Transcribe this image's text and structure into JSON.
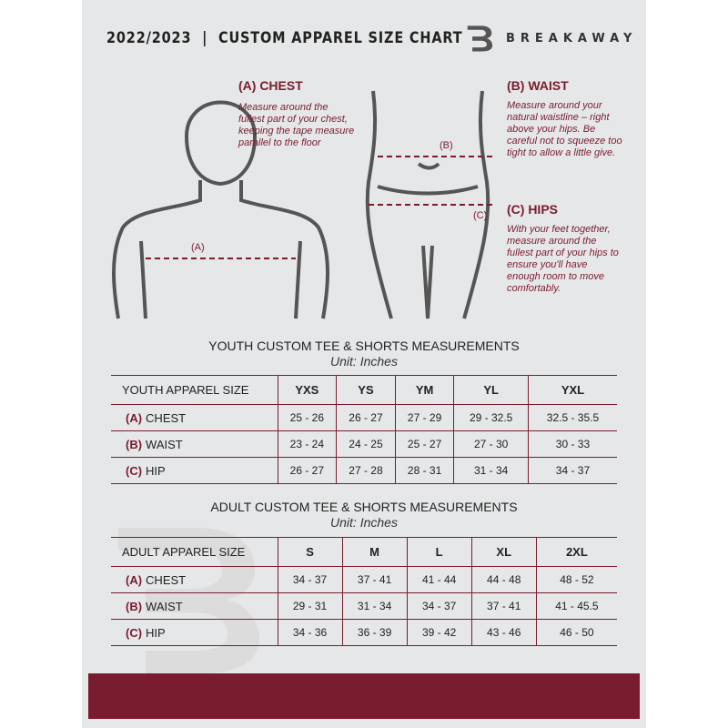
{
  "header": {
    "title": "2022/2023  |  CUSTOM APPAREL SIZE CHART",
    "brand": "BREAKAWAY",
    "logo_letter": "B"
  },
  "measures": {
    "chest": {
      "heading": "(A) CHEST",
      "marker": "(A)",
      "text": "Measure around the fullest part of your chest, keeping the tape measure parallel to the floor"
    },
    "waist": {
      "heading": "(B) WAIST",
      "marker": "(B)",
      "text": "Measure around your natural waistline – right above your hips. Be careful not to squeeze too tight to allow a little give."
    },
    "hips": {
      "heading": "(C) HIPS",
      "marker": "(C)",
      "text": "With your feet together, measure around the fullest part of your hips to ensure you'll have enough room to move comfortably."
    }
  },
  "youth": {
    "title": "YOUTH CUSTOM TEE & SHORTS MEASUREMENTS",
    "unit": "Unit: Inches",
    "size_label": "YOUTH APPAREL SIZE",
    "sizes": [
      "YXS",
      "YS",
      "YM",
      "YL",
      "YXL"
    ],
    "rows": [
      {
        "code": "(A)",
        "name": "CHEST",
        "values": [
          "25 - 26",
          "26 - 27",
          "27 - 29",
          "29 - 32.5",
          "32.5 - 35.5"
        ]
      },
      {
        "code": "(B)",
        "name": "WAIST",
        "values": [
          "23 - 24",
          "24 - 25",
          "25 - 27",
          "27 - 30",
          "30 - 33"
        ]
      },
      {
        "code": "(C)",
        "name": "HIP",
        "values": [
          "26 - 27",
          "27 - 28",
          "28 - 31",
          "31 - 34",
          "34 - 37"
        ]
      }
    ]
  },
  "adult": {
    "title": "ADULT CUSTOM TEE & SHORTS MEASUREMENTS",
    "unit": "Unit: Inches",
    "size_label": "ADULT APPAREL SIZE",
    "sizes": [
      "S",
      "M",
      "L",
      "XL",
      "2XL"
    ],
    "rows": [
      {
        "code": "(A)",
        "name": "CHEST",
        "values": [
          "34 - 37",
          "37 - 41",
          "41 - 44",
          "44 - 48",
          "48 - 52"
        ]
      },
      {
        "code": "(B)",
        "name": "WAIST",
        "values": [
          "29 - 31",
          "31 - 34",
          "34 - 37",
          "37 - 41",
          "41 - 45.5"
        ]
      },
      {
        "code": "(C)",
        "name": "HIP",
        "values": [
          "34 - 36",
          "36 - 39",
          "39 - 42",
          "43 - 46",
          "46 - 50"
        ]
      }
    ]
  },
  "colors": {
    "accent": "#7a1c30",
    "background": "#e6e7e8"
  }
}
